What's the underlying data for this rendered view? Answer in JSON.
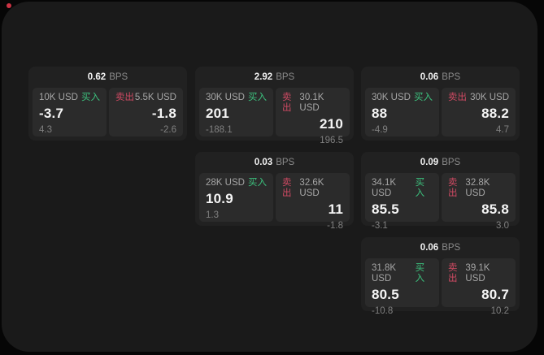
{
  "colors": {
    "page_background": "#060606",
    "panel_background": "#1a1a1a",
    "card_background": "#212121",
    "tile_background": "#2b2b2b",
    "buy_accent": "#3cc27e",
    "sell_accent": "#cf4a63",
    "header_value_color": "#f2f2f2",
    "muted_text_color": "#8a8a8a",
    "indicator_red": "#cc3344"
  },
  "labels": {
    "bps_unit": "BPS",
    "buy": "买入",
    "sell": "卖出"
  },
  "cards": [
    {
      "grid": {
        "row": 0,
        "col": 0
      },
      "bps": "0.62",
      "buy": {
        "notional": "10K USD",
        "price": "-3.7",
        "delta": "4.3"
      },
      "sell": {
        "notional": "5.5K USD",
        "price": "-1.8",
        "delta": "-2.6"
      }
    },
    {
      "grid": {
        "row": 0,
        "col": 1
      },
      "bps": "2.92",
      "buy": {
        "notional": "30K USD",
        "price": "201",
        "delta": "-188.1"
      },
      "sell": {
        "notional": "30.1K USD",
        "price": "210",
        "delta": "196.5"
      }
    },
    {
      "grid": {
        "row": 0,
        "col": 2
      },
      "bps": "0.06",
      "buy": {
        "notional": "30K USD",
        "price": "88",
        "delta": "-4.9"
      },
      "sell": {
        "notional": "30K USD",
        "price": "88.2",
        "delta": "4.7"
      }
    },
    {
      "grid": {
        "row": 1,
        "col": 1
      },
      "bps": "0.03",
      "buy": {
        "notional": "28K USD",
        "price": "10.9",
        "delta": "1.3"
      },
      "sell": {
        "notional": "32.6K USD",
        "price": "11",
        "delta": "-1.8"
      }
    },
    {
      "grid": {
        "row": 1,
        "col": 2
      },
      "bps": "0.09",
      "buy": {
        "notional": "34.1K USD",
        "price": "85.5",
        "delta": "-3.1"
      },
      "sell": {
        "notional": "32.8K USD",
        "price": "85.8",
        "delta": "3.0"
      }
    },
    {
      "grid": {
        "row": 2,
        "col": 2
      },
      "bps": "0.06",
      "buy": {
        "notional": "31.8K USD",
        "price": "80.5",
        "delta": "-10.8"
      },
      "sell": {
        "notional": "39.1K USD",
        "price": "80.7",
        "delta": "10.2"
      }
    }
  ]
}
